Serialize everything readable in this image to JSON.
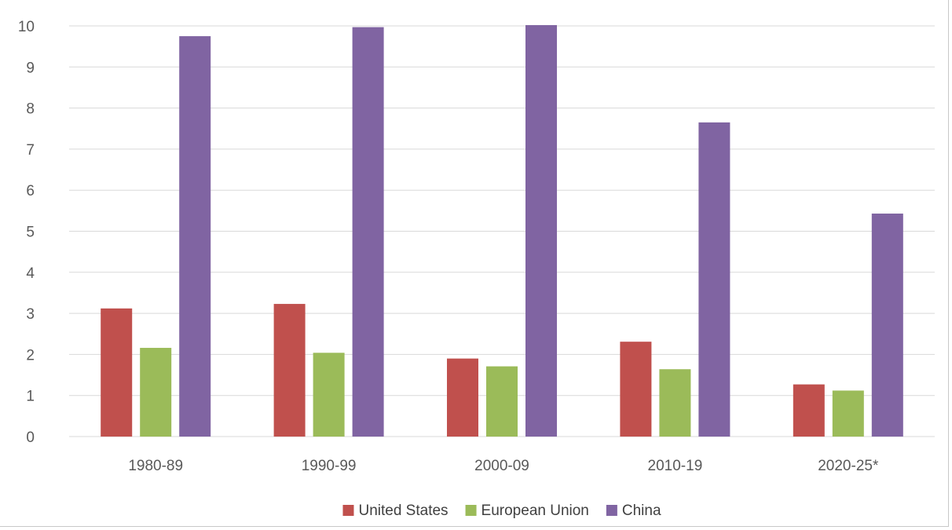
{
  "chart_data": {
    "type": "bar",
    "categories": [
      "1980-89",
      "1990-99",
      "2000-09",
      "2010-19",
      "2020-25*"
    ],
    "series": [
      {
        "name": "United States",
        "color": "#c0504d",
        "values": [
          3.12,
          3.23,
          1.9,
          2.31,
          1.27
        ]
      },
      {
        "name": "European Union",
        "color": "#9bbb59",
        "values": [
          2.16,
          2.04,
          1.71,
          1.64,
          1.12
        ]
      },
      {
        "name": "China",
        "color": "#8064a2",
        "values": [
          9.75,
          9.97,
          10.02,
          7.65,
          5.43
        ]
      }
    ],
    "ylim": [
      0,
      10
    ],
    "yticks": [
      0,
      1,
      2,
      3,
      4,
      5,
      6,
      7,
      8,
      9,
      10
    ],
    "title": "",
    "xlabel": "",
    "ylabel": "",
    "grid": true,
    "legend_position": "bottom",
    "gridline_color": "#d9d9d9"
  }
}
